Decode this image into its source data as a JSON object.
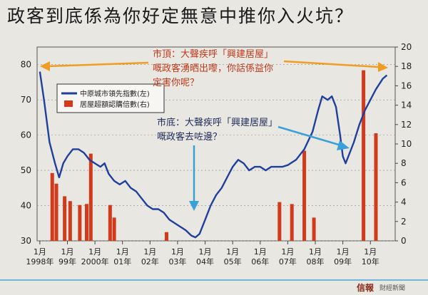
{
  "title": "政客到底係為你好定無意中推你入火坑？",
  "chart_data": {
    "type": "line+bar",
    "y_left": {
      "ticks": [
        30,
        40,
        50,
        60,
        70,
        80
      ],
      "range": [
        30,
        85
      ]
    },
    "y_right": {
      "ticks": [
        0,
        2,
        4,
        6,
        8,
        10,
        12,
        14,
        16,
        18,
        20
      ],
      "range": [
        0,
        20
      ]
    },
    "x_ticks": [
      {
        "month": "1月",
        "year": "1998年",
        "t": 1998.0
      },
      {
        "month": "1月",
        "year": "99年",
        "t": 1999.0
      },
      {
        "month": "1月",
        "year": "2000年",
        "t": 2000.0
      },
      {
        "month": "1月",
        "year": "01年",
        "t": 2001.0
      },
      {
        "month": "1月",
        "year": "02年",
        "t": 2002.0
      },
      {
        "month": "1月",
        "year": "03年",
        "t": 2003.0
      },
      {
        "month": "1月",
        "year": "04年",
        "t": 2004.0
      },
      {
        "month": "1月",
        "year": "05年",
        "t": 2005.0
      },
      {
        "month": "1月",
        "year": "06年",
        "t": 2006.0
      },
      {
        "month": "1月",
        "year": "07年",
        "t": 2007.0
      },
      {
        "month": "1月",
        "year": "08年",
        "t": 2008.0
      },
      {
        "month": "1月",
        "year": "09年",
        "t": 2009.0
      },
      {
        "month": "1月",
        "year": "10年",
        "t": 2010.0
      }
    ],
    "series": [
      {
        "name": "中原城市領先指數(左)",
        "axis": "left",
        "color": "#1f3f9e",
        "points": [
          [
            1998.0,
            78
          ],
          [
            1998.15,
            70
          ],
          [
            1998.35,
            58
          ],
          [
            1998.55,
            52
          ],
          [
            1998.7,
            48
          ],
          [
            1998.85,
            52
          ],
          [
            1999.0,
            54
          ],
          [
            1999.2,
            56
          ],
          [
            1999.4,
            56
          ],
          [
            1999.6,
            55
          ],
          [
            1999.8,
            53
          ],
          [
            2000.0,
            52
          ],
          [
            2000.2,
            51
          ],
          [
            2000.35,
            52
          ],
          [
            2000.5,
            49
          ],
          [
            2000.7,
            47
          ],
          [
            2000.9,
            46
          ],
          [
            2001.1,
            47
          ],
          [
            2001.3,
            45
          ],
          [
            2001.5,
            44
          ],
          [
            2001.7,
            42
          ],
          [
            2001.9,
            40
          ],
          [
            2002.1,
            39
          ],
          [
            2002.3,
            39
          ],
          [
            2002.5,
            38
          ],
          [
            2002.7,
            36
          ],
          [
            2002.9,
            35
          ],
          [
            2003.1,
            34
          ],
          [
            2003.3,
            33
          ],
          [
            2003.5,
            31.5
          ],
          [
            2003.65,
            31
          ],
          [
            2003.8,
            32
          ],
          [
            2004.0,
            36
          ],
          [
            2004.2,
            40
          ],
          [
            2004.4,
            43
          ],
          [
            2004.6,
            45
          ],
          [
            2004.8,
            48
          ],
          [
            2005.0,
            51
          ],
          [
            2005.2,
            53
          ],
          [
            2005.4,
            52
          ],
          [
            2005.6,
            50
          ],
          [
            2005.8,
            51
          ],
          [
            2006.0,
            51
          ],
          [
            2006.2,
            50
          ],
          [
            2006.4,
            51
          ],
          [
            2006.6,
            51
          ],
          [
            2006.8,
            51
          ],
          [
            2007.0,
            51.5
          ],
          [
            2007.3,
            53
          ],
          [
            2007.6,
            56
          ],
          [
            2007.9,
            61
          ],
          [
            2008.1,
            67
          ],
          [
            2008.25,
            71
          ],
          [
            2008.45,
            70
          ],
          [
            2008.6,
            71
          ],
          [
            2008.75,
            68
          ],
          [
            2008.9,
            60
          ],
          [
            2009.0,
            54
          ],
          [
            2009.1,
            52
          ],
          [
            2009.2,
            54
          ],
          [
            2009.4,
            58
          ],
          [
            2009.6,
            63
          ],
          [
            2009.8,
            67
          ],
          [
            2010.0,
            70
          ],
          [
            2010.2,
            73
          ],
          [
            2010.45,
            76
          ],
          [
            2010.6,
            77
          ]
        ]
      },
      {
        "name": "居屋超額認購倍數(右)",
        "axis": "right",
        "color": "#d23a1c",
        "bars": [
          {
            "t": 1998.45,
            "v": 7.0
          },
          {
            "t": 1998.6,
            "v": 5.9
          },
          {
            "t": 1998.9,
            "v": 4.6
          },
          {
            "t": 1999.1,
            "v": 4.1
          },
          {
            "t": 1999.45,
            "v": 3.7
          },
          {
            "t": 1999.7,
            "v": 3.8
          },
          {
            "t": 1999.85,
            "v": 9.0
          },
          {
            "t": 2000.55,
            "v": 3.7
          },
          {
            "t": 2000.7,
            "v": 2.4
          },
          {
            "t": 2002.6,
            "v": 0.9
          },
          {
            "t": 2006.7,
            "v": 4.0
          },
          {
            "t": 2007.15,
            "v": 3.8
          },
          {
            "t": 2007.6,
            "v": 9.3
          },
          {
            "t": 2007.95,
            "v": 2.4
          },
          {
            "t": 2009.75,
            "v": 17.6
          },
          {
            "t": 2010.2,
            "v": 11.1
          }
        ]
      }
    ],
    "annotations": [
      {
        "role": "top",
        "lines": [
          "市頂：大聲疾呼「興建居屋」",
          "嘅政客湧晒出嚟，你話係益你",
          "定害你呢？"
        ]
      },
      {
        "role": "bottom",
        "lines": [
          "市底：大聲疾呼「興建居屋」",
          "嘅政客去咗邊？"
        ]
      }
    ]
  },
  "colors": {
    "background": "#e9e7e1",
    "line": "#1f3f9e",
    "bar": "#d23a1c",
    "arrow_top": "#f09d24",
    "arrow_bottom": "#3aa0d8",
    "grid": "#8c8c8c"
  },
  "footer": {
    "logo": "信報",
    "sub": "財經新聞"
  }
}
